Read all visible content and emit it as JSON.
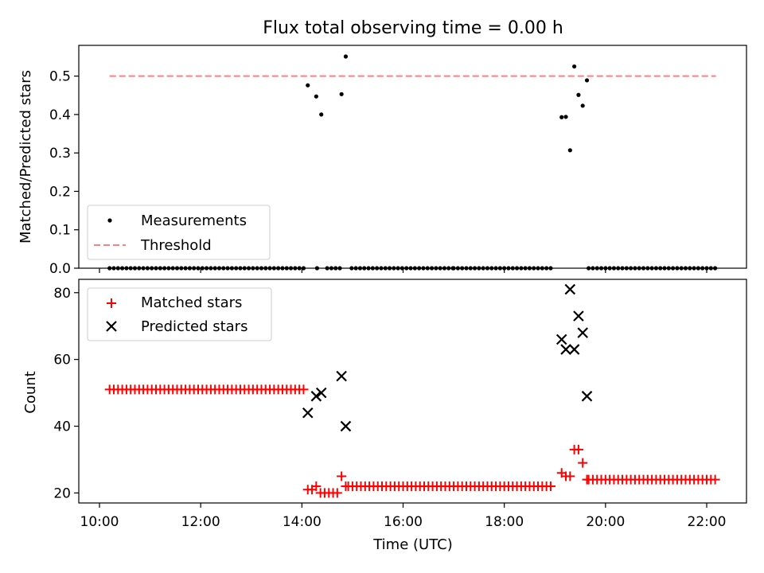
{
  "chart_data": [
    {
      "type": "scatter",
      "title": "Flux total observing time = 0.00 h",
      "xlabel": "",
      "ylabel": "Matched/Predicted stars",
      "xlim": [
        "10:00",
        "22:00"
      ],
      "ylim": [
        0,
        0.58
      ],
      "yticks": [
        0.0,
        0.1,
        0.2,
        0.3,
        0.4,
        0.5
      ],
      "ytick_labels": [
        "0.0",
        "0.1",
        "0.2",
        "0.3",
        "0.4",
        "0.5"
      ],
      "legend": {
        "placement": "lower-left",
        "entries": [
          {
            "label": "Measurements",
            "marker": "dot",
            "color": "#000000"
          },
          {
            "label": "Threshold",
            "marker": "dashed-line",
            "color": "#ff7f7f"
          }
        ]
      },
      "series": [
        {
          "name": "Measurements",
          "color": "#000000",
          "x": [
            "14:07",
            "14:17",
            "14:23",
            "14:47",
            "14:52",
            "19:08",
            "19:13",
            "19:18",
            "19:23",
            "19:28",
            "19:33",
            "19:38"
          ],
          "y": [
            0.476,
            0.447,
            0.4,
            0.453,
            0.551,
            0.393,
            0.394,
            0.307,
            0.525,
            0.451,
            0.423,
            0.489
          ]
        },
        {
          "name": "Measurements",
          "color": "#000000",
          "zero_runs": [
            [
              "10:12",
              "14:05"
            ],
            [
              "14:18",
              "14:22"
            ],
            [
              "14:30",
              "14:47"
            ],
            [
              "14:59",
              "17:00"
            ],
            [
              "17:00",
              "18:58"
            ],
            [
              "19:40",
              "22:11"
            ]
          ]
        },
        {
          "name": "Threshold",
          "color": "#ff7f7f",
          "line": "dashed",
          "x": [
            "10:12",
            "22:11"
          ],
          "y": [
            0.5,
            0.5
          ]
        }
      ]
    },
    {
      "type": "scatter",
      "title": "",
      "xlabel": "Time (UTC)",
      "ylabel": "Count",
      "xlim": [
        "10:00",
        "22:00"
      ],
      "xticks": [
        "10:00",
        "12:00",
        "14:00",
        "16:00",
        "18:00",
        "20:00",
        "22:00"
      ],
      "ylim": [
        17,
        84
      ],
      "yticks": [
        20,
        40,
        60,
        80
      ],
      "ytick_labels": [
        "20",
        "40",
        "60",
        "80"
      ],
      "legend": {
        "placement": "top-left",
        "entries": [
          {
            "label": "Matched stars",
            "marker": "plus",
            "color": "#ff0000"
          },
          {
            "label": "Predicted stars",
            "marker": "x",
            "color": "#000000"
          }
        ]
      },
      "series": [
        {
          "name": "Matched stars",
          "color": "#ff0000",
          "marker": "plus",
          "runs": [
            {
              "from": "10:12",
              "to": "14:05",
              "value": 51
            },
            {
              "from": "14:55",
              "to": "18:58",
              "value": 22
            },
            {
              "from": "19:40",
              "to": "22:11",
              "value": 24
            }
          ],
          "x": [
            "14:07",
            "14:12",
            "14:17",
            "14:22",
            "14:27",
            "14:32",
            "14:37",
            "14:42",
            "14:47",
            "14:52",
            "19:08",
            "19:13",
            "19:18",
            "19:23",
            "19:28",
            "19:33",
            "19:38"
          ],
          "y": [
            21,
            21,
            22,
            20,
            20,
            20,
            20,
            20,
            25,
            22,
            26,
            25,
            25,
            33,
            33,
            29,
            24
          ]
        },
        {
          "name": "Predicted stars",
          "color": "#000000",
          "marker": "x",
          "x": [
            "14:07",
            "14:17",
            "14:23",
            "14:47",
            "14:52",
            "19:08",
            "19:13",
            "19:18",
            "19:23",
            "19:28",
            "19:33",
            "19:38"
          ],
          "y": [
            44,
            49,
            50,
            55,
            40,
            66,
            63,
            81,
            63,
            73,
            68,
            49
          ]
        }
      ]
    }
  ]
}
